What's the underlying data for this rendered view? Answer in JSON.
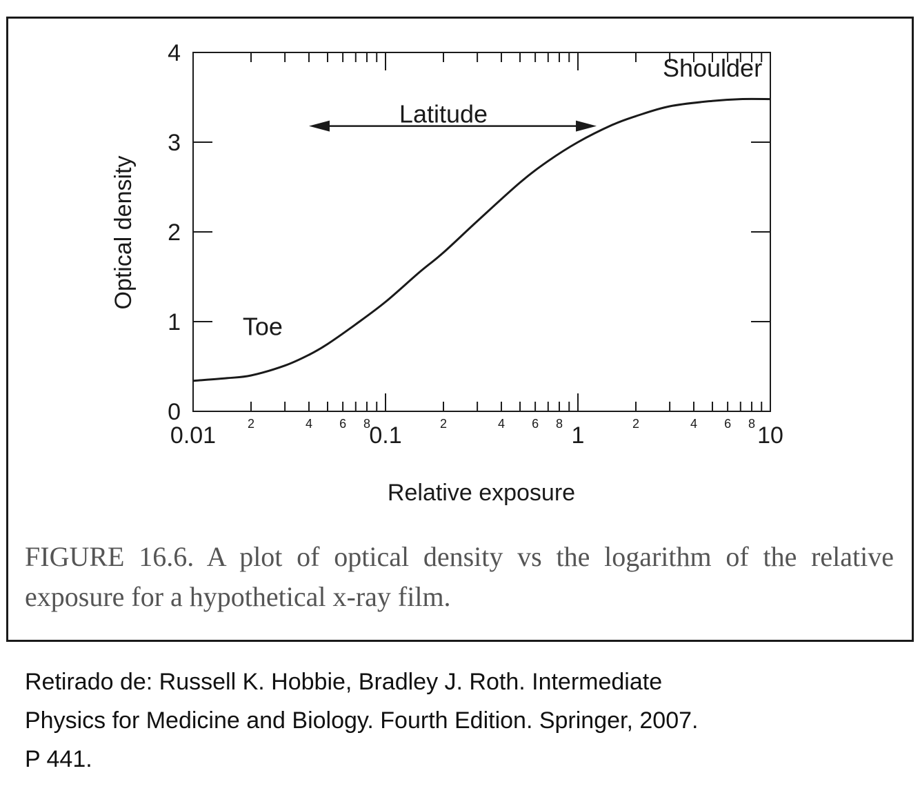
{
  "chart_data": {
    "type": "line",
    "xlabel": "Relative exposure",
    "ylabel": "Optical density",
    "xscale": "log",
    "xlim": [
      0.01,
      10
    ],
    "ylim": [
      0,
      4
    ],
    "x_major_ticks": [
      {
        "value": 0.01,
        "label": "0.01"
      },
      {
        "value": 0.1,
        "label": "0.1"
      },
      {
        "value": 1,
        "label": "1"
      },
      {
        "value": 10,
        "label": "10"
      }
    ],
    "x_minor_tick_labels": [
      {
        "value": 0.02,
        "label": "2"
      },
      {
        "value": 0.04,
        "label": "4"
      },
      {
        "value": 0.06,
        "label": "6"
      },
      {
        "value": 0.08,
        "label": "8"
      },
      {
        "value": 0.2,
        "label": "2"
      },
      {
        "value": 0.4,
        "label": "4"
      },
      {
        "value": 0.6,
        "label": "6"
      },
      {
        "value": 0.8,
        "label": "8"
      },
      {
        "value": 2,
        "label": "2"
      },
      {
        "value": 4,
        "label": "4"
      },
      {
        "value": 6,
        "label": "6"
      },
      {
        "value": 8,
        "label": "8"
      }
    ],
    "y_ticks": [
      {
        "value": 0,
        "label": "0"
      },
      {
        "value": 1,
        "label": "1"
      },
      {
        "value": 2,
        "label": "2"
      },
      {
        "value": 3,
        "label": "3"
      },
      {
        "value": 4,
        "label": "4"
      }
    ],
    "series": [
      {
        "x": [
          0.01,
          0.015,
          0.02,
          0.03,
          0.04,
          0.05,
          0.07,
          0.1,
          0.15,
          0.2,
          0.3,
          0.5,
          0.7,
          1,
          1.5,
          2,
          3,
          5,
          7,
          10
        ],
        "y": [
          0.34,
          0.37,
          0.4,
          0.51,
          0.63,
          0.75,
          0.97,
          1.22,
          1.55,
          1.77,
          2.12,
          2.55,
          2.79,
          3.0,
          3.19,
          3.29,
          3.4,
          3.46,
          3.48,
          3.48
        ]
      }
    ],
    "annotations": [
      {
        "text": "Latitude",
        "x": 0.2,
        "y": 3.22
      },
      {
        "text": "Shoulder",
        "x": 5.0,
        "y": 3.73
      },
      {
        "text": "Toe",
        "x": 0.023,
        "y": 0.85
      }
    ],
    "latitude_arrow": {
      "x_start": 0.04,
      "x_end": 1.25,
      "y": 3.18
    },
    "grid": false
  },
  "caption": "FIGURE 16.6. A plot of optical density vs the logarithm of the relative exposure for a hypothetical x-ray film.",
  "source": {
    "line1": "Retirado de: Russell K. Hobbie, Bradley J. Roth. Intermediate",
    "line2": "Physics for Medicine and Biology. Fourth Edition. Springer, 2007.",
    "line3": "P 441."
  }
}
